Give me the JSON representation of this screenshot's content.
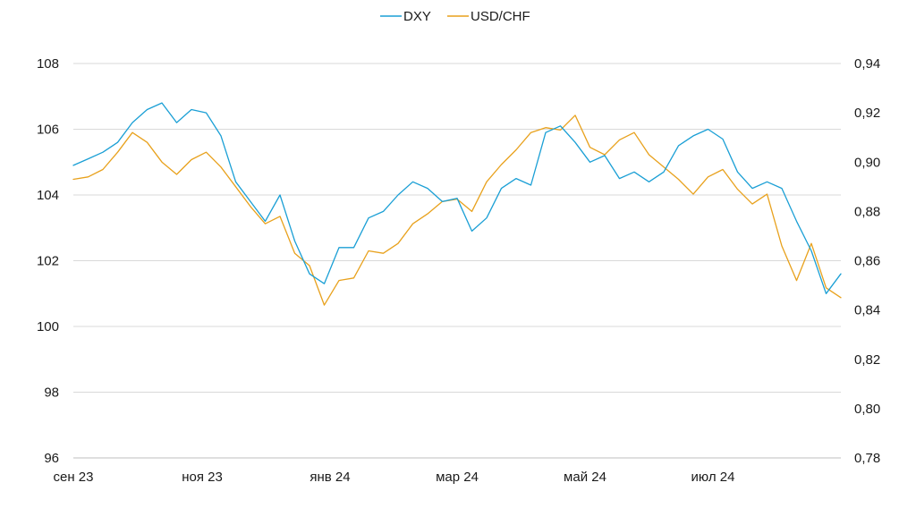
{
  "chart_data": {
    "type": "line",
    "title": "",
    "legend_position": "top-center",
    "grid": true,
    "x_ticks": [
      "сен 23",
      "ноя 23",
      "янв 24",
      "мар 24",
      "май 24",
      "июл 24"
    ],
    "x_range": [
      "2023-09-01",
      "2024-08-30"
    ],
    "y_left": {
      "ticks": [
        "96",
        "98",
        "100",
        "102",
        "104",
        "106",
        "108"
      ],
      "range": [
        96,
        108
      ]
    },
    "y_right": {
      "ticks": [
        "0,78",
        "0,80",
        "0,82",
        "0,84",
        "0,86",
        "0,88",
        "0,90",
        "0,92",
        "0,94"
      ],
      "range": [
        0.78,
        0.94
      ]
    },
    "series": [
      {
        "name": "DXY",
        "axis": "left",
        "color": "#1a9fd5",
        "dates": [
          "2023-09-01",
          "2023-09-08",
          "2023-09-15",
          "2023-09-22",
          "2023-09-29",
          "2023-10-06",
          "2023-10-13",
          "2023-10-20",
          "2023-10-27",
          "2023-11-03",
          "2023-11-10",
          "2023-11-17",
          "2023-11-24",
          "2023-12-01",
          "2023-12-08",
          "2023-12-15",
          "2023-12-22",
          "2023-12-29",
          "2024-01-05",
          "2024-01-12",
          "2024-01-19",
          "2024-01-26",
          "2024-02-02",
          "2024-02-09",
          "2024-02-16",
          "2024-02-23",
          "2024-03-01",
          "2024-03-08",
          "2024-03-15",
          "2024-03-22",
          "2024-03-29",
          "2024-04-05",
          "2024-04-12",
          "2024-04-19",
          "2024-04-26",
          "2024-05-03",
          "2024-05-10",
          "2024-05-17",
          "2024-05-24",
          "2024-05-31",
          "2024-06-07",
          "2024-06-14",
          "2024-06-21",
          "2024-06-28",
          "2024-07-05",
          "2024-07-12",
          "2024-07-19",
          "2024-07-26",
          "2024-08-02",
          "2024-08-09",
          "2024-08-16",
          "2024-08-23",
          "2024-08-30"
        ],
        "values": [
          104.9,
          105.1,
          105.3,
          105.6,
          106.2,
          106.6,
          106.8,
          106.2,
          106.6,
          106.5,
          105.8,
          104.4,
          103.8,
          103.2,
          104.0,
          102.6,
          101.6,
          101.3,
          102.4,
          102.4,
          103.3,
          103.5,
          104.0,
          104.4,
          104.2,
          103.8,
          103.9,
          102.9,
          103.3,
          104.2,
          104.5,
          104.3,
          105.9,
          106.1,
          105.6,
          105.0,
          105.2,
          104.5,
          104.7,
          104.4,
          104.7,
          105.5,
          105.8,
          106.0,
          105.7,
          104.7,
          104.2,
          104.4,
          104.2,
          103.2,
          102.3,
          101.0,
          101.6
        ]
      },
      {
        "name": "USD/CHF",
        "axis": "right",
        "color": "#e8a11c",
        "dates": [
          "2023-09-01",
          "2023-09-08",
          "2023-09-15",
          "2023-09-22",
          "2023-09-29",
          "2023-10-06",
          "2023-10-13",
          "2023-10-20",
          "2023-10-27",
          "2023-11-03",
          "2023-11-10",
          "2023-11-17",
          "2023-11-24",
          "2023-12-01",
          "2023-12-08",
          "2023-12-15",
          "2023-12-22",
          "2023-12-29",
          "2024-01-05",
          "2024-01-12",
          "2024-01-19",
          "2024-01-26",
          "2024-02-02",
          "2024-02-09",
          "2024-02-16",
          "2024-02-23",
          "2024-03-01",
          "2024-03-08",
          "2024-03-15",
          "2024-03-22",
          "2024-03-29",
          "2024-04-05",
          "2024-04-12",
          "2024-04-19",
          "2024-04-26",
          "2024-05-03",
          "2024-05-10",
          "2024-05-17",
          "2024-05-24",
          "2024-05-31",
          "2024-06-07",
          "2024-06-14",
          "2024-06-21",
          "2024-06-28",
          "2024-07-05",
          "2024-07-12",
          "2024-07-19",
          "2024-07-26",
          "2024-08-02",
          "2024-08-09",
          "2024-08-16",
          "2024-08-23",
          "2024-08-30"
        ],
        "values": [
          0.893,
          0.894,
          0.897,
          0.904,
          0.912,
          0.908,
          0.9,
          0.895,
          0.901,
          0.904,
          0.898,
          0.89,
          0.882,
          0.875,
          0.878,
          0.863,
          0.858,
          0.842,
          0.852,
          0.853,
          0.864,
          0.863,
          0.867,
          0.875,
          0.879,
          0.884,
          0.885,
          0.88,
          0.892,
          0.899,
          0.905,
          0.912,
          0.914,
          0.913,
          0.919,
          0.906,
          0.903,
          0.909,
          0.912,
          0.903,
          0.898,
          0.893,
          0.887,
          0.894,
          0.897,
          0.889,
          0.883,
          0.887,
          0.866,
          0.852,
          0.867,
          0.849,
          0.845
        ]
      }
    ]
  }
}
